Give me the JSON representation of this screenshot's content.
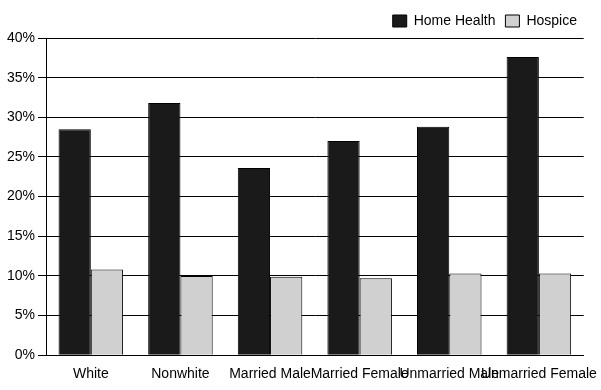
{
  "chart_data": {
    "type": "bar",
    "categories": [
      "White",
      "Nonwhite",
      "Married Male",
      "Married Female",
      "Unmarried Male",
      "Unmarried Female"
    ],
    "series": [
      {
        "name": "Home Health",
        "color": "#1a1a1a",
        "values": [
          28.5,
          31.8,
          23.6,
          27.0,
          28.8,
          37.6
        ]
      },
      {
        "name": "Hospice",
        "color": "#d0d0d0",
        "values": [
          10.8,
          10.0,
          9.9,
          9.7,
          10.3,
          10.3
        ]
      }
    ],
    "ylim": [
      0,
      40
    ],
    "yticks": [
      {
        "value": 0,
        "label": "0%"
      },
      {
        "value": 5,
        "label": "5%"
      },
      {
        "value": 10,
        "label": "10%"
      },
      {
        "value": 15,
        "label": "15%"
      },
      {
        "value": 20,
        "label": "20%"
      },
      {
        "value": 25,
        "label": "25%"
      },
      {
        "value": 30,
        "label": "30%"
      },
      {
        "value": 35,
        "label": "35%"
      },
      {
        "value": 40,
        "label": "40%"
      }
    ],
    "grid": true,
    "legend": "top-right"
  }
}
